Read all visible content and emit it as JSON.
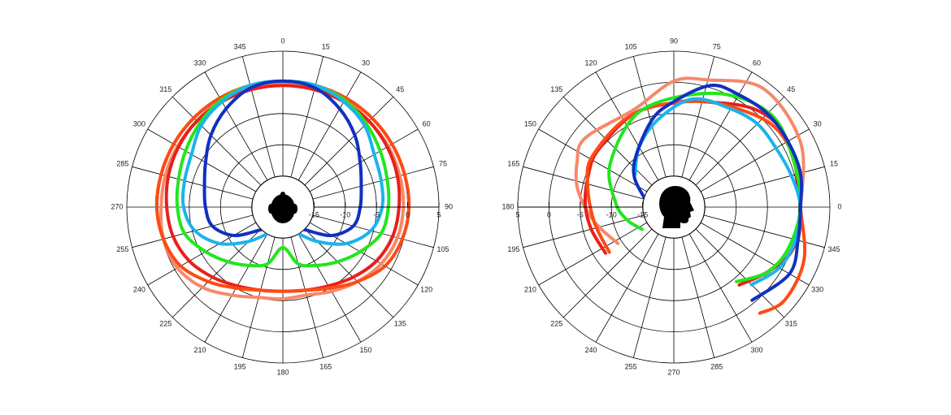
{
  "chart_data": [
    {
      "type": "polar",
      "theta_zero": "top",
      "theta_direction": "clockwise",
      "radial_axis_angle": 90,
      "rlim": [
        -20,
        5
      ],
      "rticks": [
        -15,
        -10,
        -5,
        0,
        5
      ],
      "thetaticks": [
        0,
        15,
        30,
        45,
        60,
        75,
        90,
        105,
        120,
        135,
        150,
        165,
        180,
        195,
        210,
        225,
        240,
        255,
        270,
        285,
        300,
        315,
        330,
        345
      ],
      "series": [
        {
          "color": "#f5896a",
          "closed": true,
          "theta": [
            0,
            15,
            30,
            45,
            60,
            75,
            90,
            105,
            120,
            135,
            150,
            165,
            180,
            195,
            210,
            225,
            240,
            255,
            270,
            285,
            300,
            315,
            330,
            345
          ],
          "values": [
            -0.2,
            -0.2,
            -0.2,
            -0.5,
            -0.5,
            -0.6,
            -0.7,
            -1.0,
            -1.8,
            -3.1,
            -4.4,
            -5.4,
            -5.3,
            -5.0,
            -3.7,
            -1.8,
            -0.5,
            -0.2,
            -0.5,
            -0.5,
            -0.5,
            -0.5,
            -0.2,
            -0.2
          ]
        },
        {
          "color": "#e8201a",
          "closed": true,
          "theta": [
            0,
            15,
            30,
            45,
            60,
            75,
            90,
            105,
            120,
            135,
            150,
            165,
            180,
            195,
            210,
            225,
            240,
            255,
            270,
            285,
            300,
            315,
            330,
            345
          ],
          "values": [
            -0.5,
            -0.5,
            -0.5,
            -0.5,
            -0.7,
            -1.0,
            -1.4,
            -1.8,
            -2.7,
            -4.1,
            -5.4,
            -6.2,
            -6.5,
            -6.2,
            -5.4,
            -4.1,
            -2.7,
            -1.8,
            -1.4,
            -1.0,
            -0.7,
            -0.5,
            -0.5,
            -0.5
          ]
        },
        {
          "color": "#ff4a14",
          "closed": true,
          "theta": [
            0,
            15,
            30,
            45,
            60,
            75,
            90,
            105,
            120,
            135,
            150,
            165,
            180,
            195,
            210,
            225,
            240,
            255,
            270,
            285,
            300,
            315,
            330,
            345
          ],
          "values": [
            0.2,
            0.2,
            0.2,
            0.2,
            0.2,
            0.2,
            0.2,
            -0.2,
            -1.1,
            -3.1,
            -5.0,
            -6.2,
            -6.5,
            -6.2,
            -5.0,
            -3.1,
            -1.1,
            -0.2,
            0.2,
            0.2,
            0.2,
            0.2,
            0.2,
            0.2
          ]
        },
        {
          "color": "#22e61e",
          "closed": true,
          "theta": [
            0,
            15,
            30,
            45,
            60,
            75,
            90,
            105,
            120,
            135,
            150,
            165,
            180,
            195,
            210,
            225,
            240,
            255,
            270,
            285,
            300,
            315,
            330,
            345
          ],
          "values": [
            0.2,
            0.2,
            -0.2,
            -1.1,
            -2.0,
            -2.7,
            -3.1,
            -3.7,
            -5.7,
            -7.6,
            -9.2,
            -10.6,
            -13.5,
            -10.6,
            -9.2,
            -7.6,
            -5.7,
            -3.7,
            -3.1,
            -2.7,
            -2.0,
            -1.1,
            -0.2,
            0.2
          ]
        },
        {
          "color": "#1ab4ec",
          "closed": false,
          "theta": [
            210,
            225,
            240,
            255,
            270,
            285,
            300,
            315,
            330,
            345,
            0,
            15,
            30,
            45,
            60,
            75,
            90,
            105,
            120,
            135,
            150
          ],
          "values": [
            -15.1,
            -12.2,
            -8.3,
            -5.4,
            -4.1,
            -3.7,
            -3.1,
            -1.5,
            -0.5,
            0.2,
            0.2,
            0.2,
            -0.5,
            -1.5,
            -3.1,
            -3.7,
            -4.1,
            -5.4,
            -8.3,
            -12.2,
            -15.1
          ]
        },
        {
          "color": "#1030c0",
          "closed": false,
          "theta": [
            215,
            225,
            240,
            255,
            270,
            285,
            300,
            315,
            330,
            345,
            0,
            15,
            30,
            45,
            60,
            75,
            90,
            105,
            120,
            135,
            145
          ],
          "values": [
            -16.1,
            -14.8,
            -10.9,
            -8.3,
            -7.6,
            -7.0,
            -5.7,
            -3.7,
            -1.8,
            -0.2,
            0.2,
            -0.2,
            -1.8,
            -3.7,
            -5.7,
            -7.0,
            -7.6,
            -8.3,
            -10.9,
            -14.8,
            -16.1
          ]
        }
      ]
    },
    {
      "type": "polar",
      "theta_zero": "right",
      "theta_direction": "counterclockwise",
      "radial_axis_angle": 180,
      "rlim": [
        -20,
        5
      ],
      "rticks": [
        -15,
        -10,
        -5,
        0,
        5
      ],
      "thetaticks": [
        0,
        15,
        30,
        45,
        60,
        75,
        90,
        105,
        120,
        135,
        150,
        165,
        180,
        195,
        210,
        225,
        240,
        255,
        270,
        285,
        300,
        315,
        330,
        345
      ],
      "series": [
        {
          "color": "#f5896a",
          "closed": false,
          "theta": [
            213,
            190,
            170,
            155,
            142,
            112,
            90,
            75,
            53,
            27,
            0,
            343,
            323
          ],
          "values": [
            -9.3,
            -7.0,
            -4.4,
            -2.9,
            -2.0,
            -3.1,
            0.2,
            1.1,
            3.8,
            2.8,
            0.3,
            0.4,
            -1.8
          ]
        },
        {
          "color": "#e8201a",
          "closed": false,
          "theta": [
            214,
            195,
            178,
            160,
            143,
            113,
            90,
            77,
            50,
            30,
            0,
            340,
            325,
            310
          ],
          "values": [
            -6.8,
            -6.3,
            -5.8,
            -5.4,
            -4.8,
            -3.7,
            -3.3,
            -2.6,
            0.4,
            1.1,
            0.3,
            0.2,
            -1.8,
            -3.7
          ]
        },
        {
          "color": "#ff4a14",
          "closed": false,
          "theta": [
            215,
            190,
            165,
            147,
            113,
            77,
            50,
            34,
            15,
            0,
            338,
            320,
            309
          ],
          "values": [
            -7.4,
            -7.0,
            -5.7,
            -4.6,
            -3.7,
            -2.6,
            -0.5,
            0.8,
            0.8,
            0.3,
            2.5,
            3.2,
            1.9
          ]
        },
        {
          "color": "#22e61e",
          "closed": false,
          "theta": [
            215,
            195,
            175,
            145,
            108,
            70,
            44,
            22,
            0,
            340,
            325,
            310
          ],
          "values": [
            -13.8,
            -12.2,
            -10.6,
            -7.6,
            -3.6,
            -0.6,
            1.5,
            0.6,
            0.3,
            -0.5,
            -1.8,
            -4.4
          ]
        },
        {
          "color": "#1ab4ec",
          "closed": false,
          "theta": [
            140,
            120,
            100,
            80,
            60,
            45,
            30,
            15,
            0,
            345,
            330,
            315
          ],
          "values": [
            -11.9,
            -8.9,
            -5.7,
            -2.4,
            -1.8,
            -1.1,
            -1.1,
            -0.5,
            0.3,
            0.2,
            -0.5,
            -2.4
          ]
        },
        {
          "color": "#1030c0",
          "closed": false,
          "theta": [
            190,
            160,
            135,
            105,
            90,
            73,
            60,
            45,
            30,
            15,
            0,
            345,
            330,
            310
          ],
          "values": [
            -17.4,
            -14.8,
            -10.9,
            -5.8,
            -3.1,
            0.4,
            0.8,
            1.2,
            1.1,
            1.0,
            0.3,
            0.6,
            1.4,
            -0.5
          ]
        }
      ]
    }
  ]
}
